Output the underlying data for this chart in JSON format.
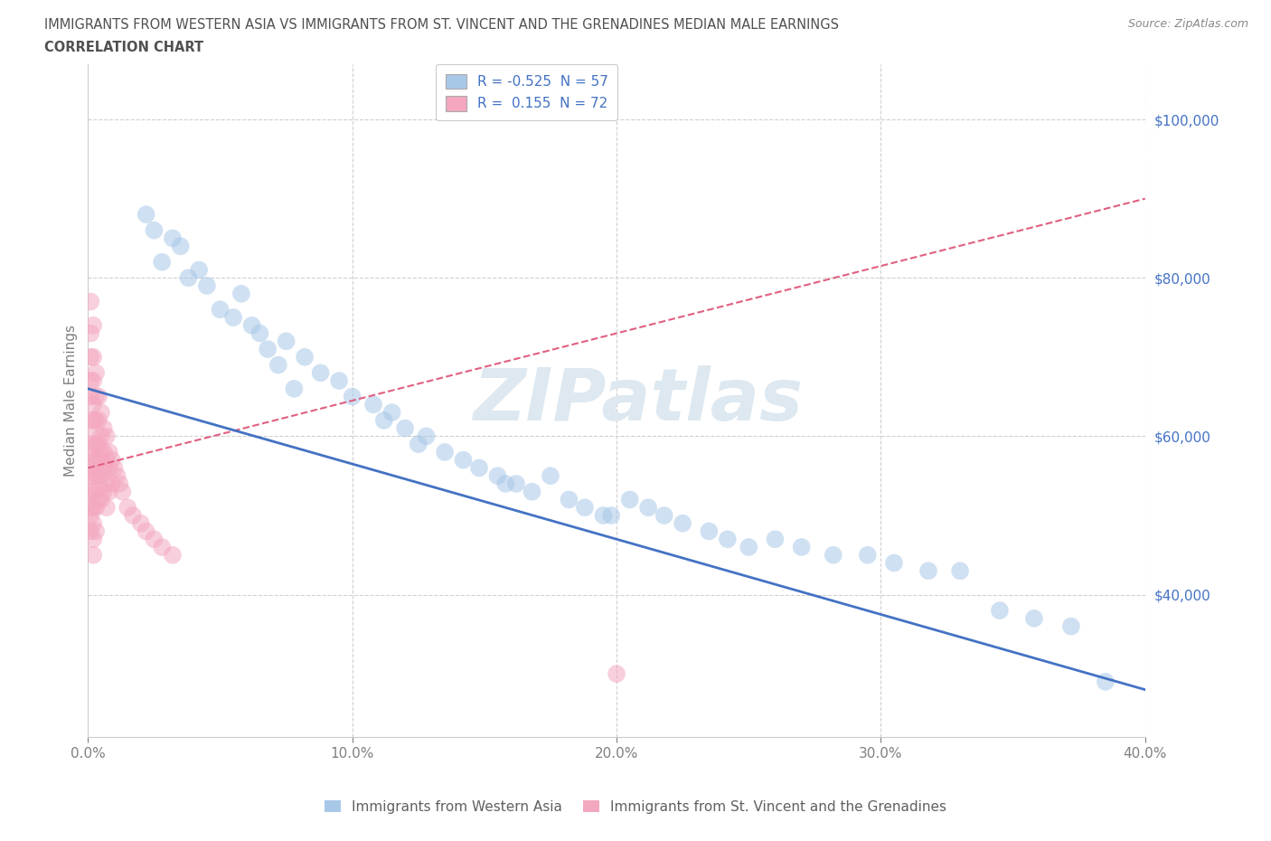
{
  "title_line1": "IMMIGRANTS FROM WESTERN ASIA VS IMMIGRANTS FROM ST. VINCENT AND THE GRENADINES MEDIAN MALE EARNINGS",
  "title_line2": "CORRELATION CHART",
  "source": "Source: ZipAtlas.com",
  "ylabel": "Median Male Earnings",
  "watermark": "ZIPatlas",
  "legend_label_blue": "R = -0.525  N = 57",
  "legend_label_pink": "R =  0.155  N = 72",
  "legend_label_blue_series": "Immigrants from Western Asia",
  "legend_label_pink_series": "Immigrants from St. Vincent and the Grenadines",
  "blue_scatter_x": [
    0.022,
    0.028,
    0.032,
    0.038,
    0.045,
    0.05,
    0.058,
    0.062,
    0.068,
    0.075,
    0.082,
    0.088,
    0.095,
    0.1,
    0.108,
    0.115,
    0.12,
    0.128,
    0.135,
    0.142,
    0.148,
    0.155,
    0.162,
    0.168,
    0.175,
    0.182,
    0.188,
    0.195,
    0.205,
    0.212,
    0.218,
    0.225,
    0.235,
    0.242,
    0.25,
    0.26,
    0.27,
    0.282,
    0.295,
    0.305,
    0.318,
    0.33,
    0.345,
    0.358,
    0.372,
    0.385,
    0.025,
    0.035,
    0.042,
    0.055,
    0.065,
    0.072,
    0.078,
    0.112,
    0.125,
    0.158,
    0.198
  ],
  "blue_scatter_y": [
    88000,
    82000,
    85000,
    80000,
    79000,
    76000,
    78000,
    74000,
    71000,
    72000,
    70000,
    68000,
    67000,
    65000,
    64000,
    63000,
    61000,
    60000,
    58000,
    57000,
    56000,
    55000,
    54000,
    53000,
    55000,
    52000,
    51000,
    50000,
    52000,
    51000,
    50000,
    49000,
    48000,
    47000,
    46000,
    47000,
    46000,
    45000,
    45000,
    44000,
    43000,
    43000,
    38000,
    37000,
    36000,
    29000,
    86000,
    84000,
    81000,
    75000,
    73000,
    69000,
    66000,
    62000,
    59000,
    54000,
    50000
  ],
  "pink_scatter_x": [
    0.001,
    0.001,
    0.001,
    0.001,
    0.001,
    0.001,
    0.001,
    0.001,
    0.001,
    0.001,
    0.001,
    0.001,
    0.001,
    0.001,
    0.002,
    0.002,
    0.002,
    0.002,
    0.002,
    0.002,
    0.002,
    0.002,
    0.002,
    0.002,
    0.002,
    0.002,
    0.002,
    0.003,
    0.003,
    0.003,
    0.003,
    0.003,
    0.003,
    0.003,
    0.003,
    0.003,
    0.004,
    0.004,
    0.004,
    0.004,
    0.004,
    0.004,
    0.005,
    0.005,
    0.005,
    0.005,
    0.005,
    0.006,
    0.006,
    0.006,
    0.006,
    0.007,
    0.007,
    0.007,
    0.007,
    0.008,
    0.008,
    0.008,
    0.009,
    0.009,
    0.01,
    0.011,
    0.012,
    0.013,
    0.015,
    0.017,
    0.02,
    0.022,
    0.025,
    0.028,
    0.032,
    0.2
  ],
  "pink_scatter_y": [
    77000,
    73000,
    70000,
    67000,
    65000,
    62000,
    60000,
    58000,
    56000,
    55000,
    53000,
    51000,
    50000,
    48000,
    74000,
    70000,
    67000,
    64000,
    62000,
    59000,
    57000,
    55000,
    53000,
    51000,
    49000,
    47000,
    45000,
    68000,
    65000,
    62000,
    59000,
    57000,
    55000,
    53000,
    51000,
    48000,
    65000,
    62000,
    59000,
    57000,
    55000,
    52000,
    63000,
    60000,
    58000,
    55000,
    52000,
    61000,
    58000,
    56000,
    53000,
    60000,
    57000,
    54000,
    51000,
    58000,
    56000,
    53000,
    57000,
    54000,
    56000,
    55000,
    54000,
    53000,
    51000,
    50000,
    49000,
    48000,
    47000,
    46000,
    45000,
    30000
  ],
  "blue_line_x": [
    0.0,
    0.4
  ],
  "blue_line_y": [
    66000,
    28000
  ],
  "pink_line_x": [
    0.0,
    0.4
  ],
  "pink_line_y": [
    56000,
    90000
  ],
  "xlim": [
    0.0,
    0.4
  ],
  "ylim": [
    22000,
    107000
  ],
  "yticks": [
    40000,
    60000,
    80000,
    100000
  ],
  "ytick_labels": [
    "$40,000",
    "$60,000",
    "$80,000",
    "$100,000"
  ],
  "xticks": [
    0.0,
    0.1,
    0.2,
    0.3,
    0.4
  ],
  "xtick_labels": [
    "0.0%",
    "10.0%",
    "20.0%",
    "30.0%",
    "40.0%"
  ],
  "blue_color": "#a8c8e8",
  "blue_line_color": "#4472c4",
  "pink_color": "#f4a8c0",
  "pink_line_color": "#e06080",
  "grid_color": "#d0d0d0",
  "background_color": "#ffffff",
  "title_color": "#505050",
  "axis_label_color": "#808080",
  "tick_label_color_right": "#4472c4",
  "watermark_color": "#dde8f0"
}
